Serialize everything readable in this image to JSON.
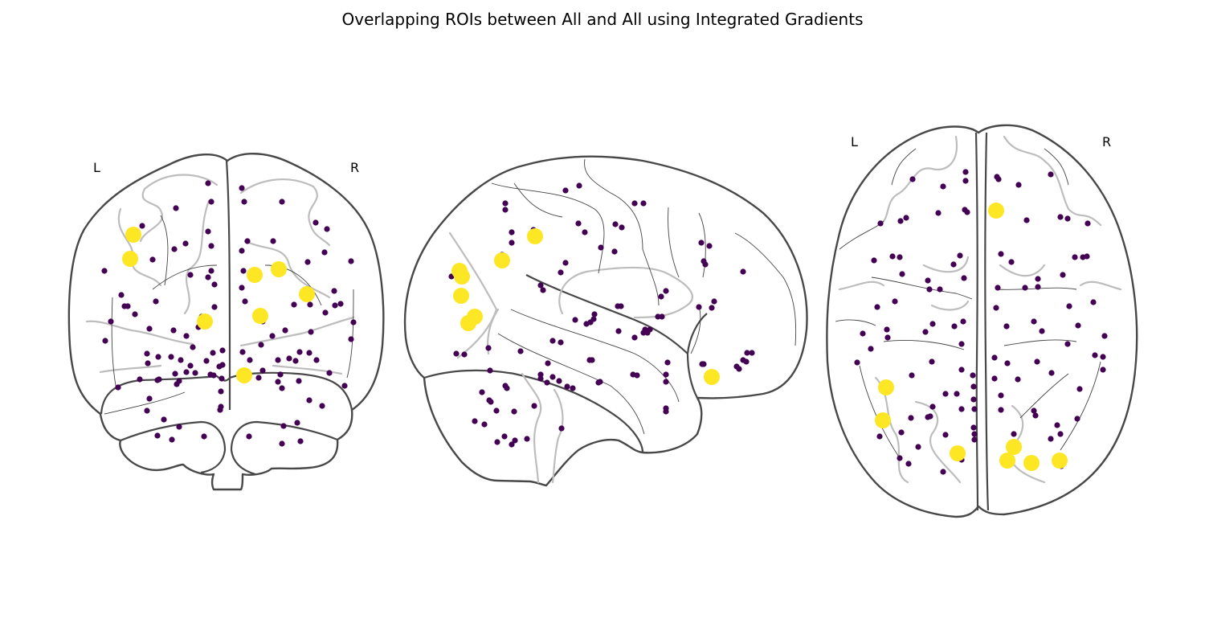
{
  "figure": {
    "title": "Overlapping ROIs between All and All using Integrated Gradients"
  },
  "colors": {
    "small_marker": "#440154",
    "overlap_marker": "#fde725",
    "outline": "#484848",
    "sulcus": "#bdbdbd"
  },
  "panels": [
    {
      "id": "coronal",
      "labels": {
        "left": "L",
        "right": "R"
      },
      "rois": [
        [
          259,
          228
        ],
        [
          219,
          259
        ],
        [
          263,
          251
        ],
        [
          301,
          234
        ],
        [
          304,
          251
        ],
        [
          351,
          251
        ],
        [
          393,
          277
        ],
        [
          407,
          285
        ],
        [
          259,
          288
        ],
        [
          177,
          281
        ],
        [
          231,
          303
        ],
        [
          263,
          306
        ],
        [
          308,
          300
        ],
        [
          301,
          312
        ],
        [
          340,
          300
        ],
        [
          217,
          310
        ],
        [
          190,
          323
        ],
        [
          130,
          337
        ],
        [
          237,
          342
        ],
        [
          263,
          337
        ],
        [
          259,
          345
        ],
        [
          267,
          354
        ],
        [
          404,
          314
        ],
        [
          437,
          325
        ],
        [
          383,
          326
        ],
        [
          303,
          337
        ],
        [
          301,
          358
        ],
        [
          151,
          367
        ],
        [
          155,
          381
        ],
        [
          159,
          381
        ],
        [
          168,
          391
        ],
        [
          194,
          375
        ],
        [
          267,
          382
        ],
        [
          251,
          394
        ],
        [
          251,
          399
        ],
        [
          138,
          400
        ],
        [
          305,
          375
        ],
        [
          318,
          391
        ],
        [
          327,
          400
        ],
        [
          366,
          379
        ],
        [
          386,
          379
        ],
        [
          405,
          389
        ],
        [
          416,
          362
        ],
        [
          417,
          380
        ],
        [
          424,
          378
        ],
        [
          440,
          401
        ],
        [
          186,
          409
        ],
        [
          216,
          411
        ],
        [
          232,
          418
        ],
        [
          247,
          407
        ],
        [
          355,
          411
        ],
        [
          387,
          413
        ],
        [
          339,
          418
        ],
        [
          131,
          424
        ],
        [
          437,
          422
        ],
        [
          325,
          429
        ],
        [
          183,
          440
        ],
        [
          197,
          444
        ],
        [
          213,
          444
        ],
        [
          225,
          448
        ],
        [
          240,
          432
        ],
        [
          265,
          439
        ],
        [
          277,
          436
        ],
        [
          302,
          438
        ],
        [
          311,
          448
        ],
        [
          373,
          438
        ],
        [
          385,
          439
        ],
        [
          360,
          446
        ],
        [
          346,
          448
        ],
        [
          368,
          449
        ],
        [
          394,
          448
        ],
        [
          184,
          452
        ],
        [
          237,
          455
        ],
        [
          257,
          449
        ],
        [
          273,
          456
        ],
        [
          277,
          454
        ],
        [
          262,
          466
        ],
        [
          266,
          467
        ],
        [
          276,
          471
        ],
        [
          232,
          463
        ],
        [
          218,
          465
        ],
        [
          243,
          464
        ],
        [
          349,
          466
        ],
        [
          327,
          461
        ],
        [
          410,
          464
        ],
        [
          174,
          472
        ],
        [
          196,
          473
        ],
        [
          220,
          478
        ],
        [
          198,
          472
        ],
        [
          322,
          470
        ],
        [
          346,
          475
        ],
        [
          372,
          474
        ],
        [
          429,
          480
        ],
        [
          223,
          474
        ],
        [
          351,
          483
        ],
        [
          147,
          482
        ],
        [
          186,
          496
        ],
        [
          275,
          487
        ],
        [
          275,
          506
        ],
        [
          274,
          510
        ],
        [
          401,
          505
        ],
        [
          385,
          498
        ],
        [
          183,
          511
        ],
        [
          204,
          522
        ],
        [
          223,
          531
        ],
        [
          353,
          530
        ],
        [
          370,
          526
        ],
        [
          196,
          542
        ],
        [
          214,
          547
        ],
        [
          254,
          543
        ],
        [
          310,
          543
        ],
        [
          351,
          552
        ],
        [
          374,
          549
        ]
      ],
      "overlaps": [
        [
          166,
          292
        ],
        [
          162,
          322
        ],
        [
          255,
          400
        ],
        [
          317,
          342
        ],
        [
          347,
          335
        ],
        [
          382,
          366
        ],
        [
          324,
          393
        ],
        [
          304,
          467
        ]
      ]
    },
    {
      "id": "sagittal",
      "labels": {},
      "rois": [
        [
          629,
          253
        ],
        [
          629,
          261
        ],
        [
          704,
          237
        ],
        [
          721,
          231
        ],
        [
          790,
          253
        ],
        [
          801,
          253
        ],
        [
          637,
          289
        ],
        [
          664,
          286
        ],
        [
          637,
          302
        ],
        [
          720,
          278
        ],
        [
          728,
          289
        ],
        [
          766,
          279
        ],
        [
          774,
          283
        ],
        [
          748,
          308
        ],
        [
          765,
          313
        ],
        [
          873,
          302
        ],
        [
          883,
          306
        ],
        [
          704,
          327
        ],
        [
          698,
          339
        ],
        [
          625,
          317
        ],
        [
          876,
          325
        ],
        [
          878,
          329
        ],
        [
          925,
          338
        ],
        [
          673,
          355
        ],
        [
          676,
          361
        ],
        [
          829,
          362
        ],
        [
          823,
          369
        ],
        [
          769,
          381
        ],
        [
          773,
          381
        ],
        [
          740,
          391
        ],
        [
          739,
          397
        ],
        [
          730,
          403
        ],
        [
          735,
          401
        ],
        [
          716,
          398
        ],
        [
          819,
          394
        ],
        [
          824,
          394
        ],
        [
          803,
          410
        ],
        [
          809,
          410
        ],
        [
          806,
          414
        ],
        [
          801,
          414
        ],
        [
          790,
          420
        ],
        [
          870,
          382
        ],
        [
          886,
          383
        ],
        [
          889,
          375
        ],
        [
          930,
          439
        ],
        [
          936,
          439
        ],
        [
          925,
          448
        ],
        [
          929,
          450
        ],
        [
          917,
          456
        ],
        [
          920,
          459
        ],
        [
          562,
          344
        ],
        [
          568,
          440
        ],
        [
          578,
          441
        ],
        [
          608,
          433
        ],
        [
          610,
          461
        ],
        [
          648,
          437
        ],
        [
          688,
          424
        ],
        [
          698,
          426
        ],
        [
          682,
          452
        ],
        [
          734,
          448
        ],
        [
          737,
          448
        ],
        [
          770,
          412
        ],
        [
          831,
          451
        ],
        [
          829,
          466
        ],
        [
          829,
          475
        ],
        [
          874,
          453
        ],
        [
          876,
          453
        ],
        [
          673,
          466
        ],
        [
          673,
          471
        ],
        [
          681,
          476
        ],
        [
          696,
          474
        ],
        [
          706,
          481
        ],
        [
          713,
          483
        ],
        [
          688,
          469
        ],
        [
          747,
          475
        ],
        [
          745,
          476
        ],
        [
          788,
          466
        ],
        [
          793,
          467
        ],
        [
          600,
          488
        ],
        [
          631,
          483
        ],
        [
          629,
          480
        ],
        [
          609,
          498
        ],
        [
          611,
          500
        ],
        [
          618,
          511
        ],
        [
          640,
          512
        ],
        [
          665,
          505
        ],
        [
          829,
          508
        ],
        [
          829,
          512
        ],
        [
          699,
          533
        ],
        [
          591,
          524
        ],
        [
          603,
          528
        ],
        [
          619,
          550
        ],
        [
          637,
          553
        ],
        [
          641,
          548
        ],
        [
          656,
          546
        ],
        [
          628,
          543
        ]
      ],
      "overlaps": [
        [
          666,
          294
        ],
        [
          625,
          324
        ],
        [
          572,
          337
        ],
        [
          575,
          344
        ],
        [
          574,
          368
        ],
        [
          591,
          394
        ],
        [
          583,
          402
        ],
        [
          886,
          469
        ]
      ]
    },
    {
      "id": "axial",
      "labels": {
        "left": "L",
        "right": "R"
      },
      "rois": [
        [
          1136,
          223
        ],
        [
          1174,
          232
        ],
        [
          1202,
          214
        ],
        [
          1202,
          225
        ],
        [
          1241,
          220
        ],
        [
          1243,
          223
        ],
        [
          1268,
          230
        ],
        [
          1308,
          217
        ],
        [
          1096,
          278
        ],
        [
          1121,
          275
        ],
        [
          1128,
          271
        ],
        [
          1168,
          265
        ],
        [
          1201,
          261
        ],
        [
          1204,
          264
        ],
        [
          1241,
          259
        ],
        [
          1278,
          274
        ],
        [
          1320,
          270
        ],
        [
          1329,
          272
        ],
        [
          1354,
          278
        ],
        [
          1088,
          324
        ],
        [
          1111,
          319
        ],
        [
          1120,
          320
        ],
        [
          1195,
          318
        ],
        [
          1187,
          329
        ],
        [
          1246,
          316
        ],
        [
          1259,
          326
        ],
        [
          1338,
          320
        ],
        [
          1348,
          320
        ],
        [
          1353,
          319
        ],
        [
          1123,
          341
        ],
        [
          1155,
          349
        ],
        [
          1170,
          360
        ],
        [
          1200,
          346
        ],
        [
          1157,
          360
        ],
        [
          1242,
          358
        ],
        [
          1276,
          358
        ],
        [
          1292,
          347
        ],
        [
          1292,
          357
        ],
        [
          1323,
          342
        ],
        [
          1092,
          382
        ],
        [
          1114,
          375
        ],
        [
          1161,
          403
        ],
        [
          1152,
          413
        ],
        [
          1188,
          406
        ],
        [
          1199,
          400
        ],
        [
          1104,
          410
        ],
        [
          1105,
          420
        ],
        [
          1074,
          415
        ],
        [
          1084,
          434
        ],
        [
          1067,
          451
        ],
        [
          1240,
          383
        ],
        [
          1253,
          406
        ],
        [
          1287,
          400
        ],
        [
          1297,
          412
        ],
        [
          1331,
          381
        ],
        [
          1361,
          376
        ],
        [
          1342,
          405
        ],
        [
          1375,
          418
        ],
        [
          1329,
          428
        ],
        [
          1363,
          442
        ],
        [
          1373,
          444
        ],
        [
          1373,
          460
        ],
        [
          1197,
          428
        ],
        [
          1238,
          445
        ],
        [
          1160,
          450
        ],
        [
          1197,
          460
        ],
        [
          1211,
          467
        ],
        [
          1212,
          481
        ],
        [
          1191,
          490
        ],
        [
          1177,
          490
        ],
        [
          1212,
          497
        ],
        [
          1213,
          509
        ],
        [
          1197,
          509
        ],
        [
          1135,
          467
        ],
        [
          1254,
          452
        ],
        [
          1238,
          471
        ],
        [
          1291,
          450
        ],
        [
          1309,
          464
        ],
        [
          1267,
          472
        ],
        [
          1246,
          492
        ],
        [
          1246,
          510
        ],
        [
          1287,
          511
        ],
        [
          1289,
          517
        ],
        [
          1344,
          484
        ],
        [
          1341,
          521
        ],
        [
          1316,
          529
        ],
        [
          1161,
          506
        ],
        [
          1155,
          519
        ],
        [
          1158,
          518
        ],
        [
          1134,
          520
        ],
        [
          1122,
          538
        ],
        [
          1212,
          532
        ],
        [
          1213,
          540
        ],
        [
          1213,
          547
        ],
        [
          1177,
          541
        ],
        [
          1262,
          540
        ],
        [
          1320,
          540
        ],
        [
          1308,
          546
        ],
        [
          1095,
          543
        ],
        [
          1143,
          556
        ],
        [
          1120,
          570
        ],
        [
          1131,
          577
        ],
        [
          1197,
          572
        ],
        [
          1174,
          587
        ],
        [
          1321,
          580
        ]
      ],
      "overlaps": [
        [
          1240,
          262
        ],
        [
          1103,
          482
        ],
        [
          1099,
          523
        ],
        [
          1262,
          556
        ],
        [
          1192,
          564
        ],
        [
          1254,
          573
        ],
        [
          1284,
          576
        ],
        [
          1319,
          573
        ]
      ]
    }
  ]
}
